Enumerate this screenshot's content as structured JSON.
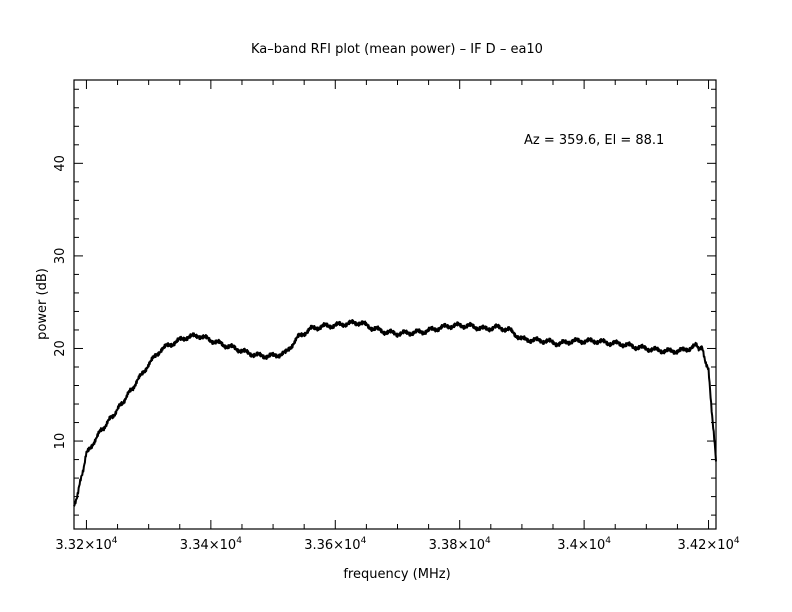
{
  "chart_data": {
    "type": "line",
    "title": "Ka–band RFI plot (mean power) – IF D – ea10",
    "xlabel": "frequency (MHz)",
    "ylabel": "power (dB)",
    "annotation": "Az = 359.6, El = 88.1",
    "xlim": [
      33180,
      34212
    ],
    "ylim": [
      0.5,
      49
    ],
    "x_ticks": [
      {
        "value": 33200,
        "mant": "3.32×10",
        "exp": "4"
      },
      {
        "value": 33400,
        "mant": "3.34×10",
        "exp": "4"
      },
      {
        "value": 33600,
        "mant": "3.36×10",
        "exp": "4"
      },
      {
        "value": 33800,
        "mant": "3.38×10",
        "exp": "4"
      },
      {
        "value": 34000,
        "mant": "3.4×10",
        "exp": "4"
      },
      {
        "value": 34200,
        "mant": "3.42×10",
        "exp": "4"
      }
    ],
    "y_ticks": [
      {
        "value": 10,
        "label": "10"
      },
      {
        "value": 20,
        "label": "20"
      },
      {
        "value": 30,
        "label": "30"
      },
      {
        "value": 40,
        "label": "40"
      }
    ],
    "grid": false,
    "series": [
      {
        "color": "#000000",
        "x": [
          33180,
          33190,
          33200,
          33220,
          33250,
          33280,
          33300,
          33320,
          33340,
          33360,
          33380,
          33400,
          33420,
          33440,
          33460,
          33480,
          33500,
          33520,
          33540,
          33560,
          33580,
          33600,
          33620,
          33640,
          33660,
          33680,
          33700,
          33720,
          33740,
          33760,
          33780,
          33800,
          33820,
          33840,
          33860,
          33880,
          33900,
          33920,
          33940,
          33960,
          33980,
          34000,
          34020,
          34040,
          34060,
          34080,
          34100,
          34120,
          34140,
          34160,
          34180,
          34190,
          34200,
          34205,
          34210,
          34212
        ],
        "y": [
          2.8,
          5.5,
          8.6,
          10.8,
          13.4,
          16.3,
          18.3,
          19.9,
          20.6,
          21.2,
          21.4,
          20.9,
          20.4,
          20.0,
          19.5,
          19.2,
          19.2,
          19.5,
          21.2,
          22.1,
          22.4,
          22.5,
          22.7,
          22.8,
          22.2,
          21.8,
          21.6,
          21.7,
          21.8,
          22.1,
          22.4,
          22.5,
          22.4,
          22.1,
          22.3,
          22.0,
          21.0,
          20.9,
          20.8,
          20.5,
          20.8,
          20.8,
          20.8,
          20.6,
          20.5,
          20.2,
          20.0,
          19.8,
          19.7,
          19.8,
          20.3,
          19.9,
          17.5,
          13.5,
          9.5,
          7.8
        ]
      }
    ]
  }
}
